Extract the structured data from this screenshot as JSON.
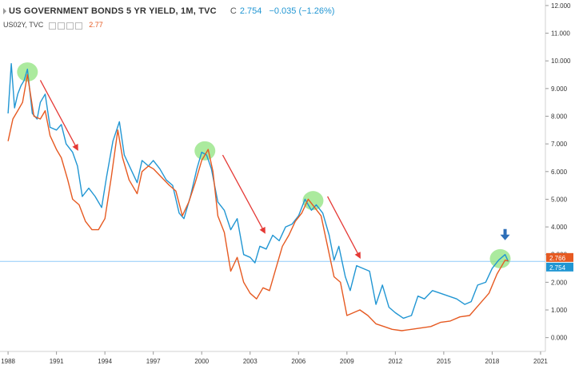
{
  "header": {
    "symbol_title": "US GOVERNMENT BONDS 5 YR YIELD, 1M, TVC",
    "close_prefix": "C",
    "close_value": "2.754",
    "change": "−0.035 (−1.26%)",
    "compare_symbol": "US02Y, TVC",
    "compare_value": "2.77"
  },
  "colors": {
    "us05y": "#2196d3",
    "us02y": "#e65a22",
    "arrow_red": "#e53935",
    "arrow_blue": "#2e6fb8",
    "circle_fill": "#8fe37e",
    "price_line": "#90caf9"
  },
  "chart_data": {
    "type": "line",
    "title": "US GOVERNMENT BONDS 5 YR YIELD, 1M, TVC",
    "xlabel": "",
    "ylabel": "",
    "xlim": [
      1987.5,
      2021.3
    ],
    "ylim": [
      -0.5,
      12.2
    ],
    "x_ticks": [
      "1988",
      "1991",
      "1994",
      "1997",
      "2000",
      "2003",
      "2006",
      "2009",
      "2012",
      "2015",
      "2018",
      "2021"
    ],
    "y_ticks": [
      "12.000",
      "11.000",
      "10.000",
      "9.000",
      "8.000",
      "7.000",
      "6.000",
      "5.000",
      "4.000",
      "3.000",
      "2.000",
      "1.000",
      "0.000"
    ],
    "series": [
      {
        "name": "US05Y",
        "x": [
          1988.0,
          1988.2,
          1988.4,
          1988.6,
          1988.8,
          1989.0,
          1989.2,
          1989.5,
          1989.8,
          1990.0,
          1990.3,
          1990.6,
          1991.0,
          1991.3,
          1991.6,
          1992.0,
          1992.3,
          1992.6,
          1993.0,
          1993.4,
          1993.8,
          1994.1,
          1994.5,
          1994.9,
          1995.2,
          1995.6,
          1996.0,
          1996.3,
          1996.7,
          1997.0,
          1997.4,
          1997.8,
          1998.2,
          1998.6,
          1998.9,
          1999.3,
          1999.7,
          2000.0,
          2000.3,
          2000.6,
          2001.0,
          2001.4,
          2001.8,
          2002.2,
          2002.6,
          2003.0,
          2003.3,
          2003.6,
          2004.0,
          2004.4,
          2004.8,
          2005.2,
          2005.6,
          2006.0,
          2006.4,
          2006.8,
          2007.1,
          2007.5,
          2007.9,
          2008.2,
          2008.5,
          2008.9,
          2009.2,
          2009.6,
          2010.0,
          2010.4,
          2010.8,
          2011.2,
          2011.6,
          2012.0,
          2012.5,
          2013.0,
          2013.4,
          2013.8,
          2014.3,
          2014.8,
          2015.3,
          2015.8,
          2016.3,
          2016.7,
          2017.1,
          2017.6,
          2018.0,
          2018.4,
          2018.8,
          2019.0
        ],
        "values": [
          8.1,
          9.9,
          8.3,
          8.8,
          9.1,
          9.3,
          9.7,
          8.1,
          7.9,
          8.5,
          8.8,
          7.6,
          7.5,
          7.7,
          7.0,
          6.7,
          6.2,
          5.1,
          5.4,
          5.1,
          4.7,
          5.8,
          7.1,
          7.8,
          6.6,
          6.1,
          5.6,
          6.4,
          6.2,
          6.4,
          6.1,
          5.7,
          5.5,
          4.5,
          4.3,
          5.1,
          6.1,
          6.7,
          6.6,
          6.1,
          4.9,
          4.6,
          3.9,
          4.3,
          3.0,
          2.9,
          2.7,
          3.3,
          3.2,
          3.7,
          3.5,
          4.0,
          4.1,
          4.4,
          5.0,
          4.6,
          4.8,
          4.5,
          3.7,
          2.8,
          3.3,
          2.2,
          1.7,
          2.6,
          2.5,
          2.4,
          1.2,
          1.9,
          1.1,
          0.9,
          0.7,
          0.8,
          1.5,
          1.4,
          1.7,
          1.6,
          1.5,
          1.4,
          1.2,
          1.3,
          1.9,
          2.0,
          2.5,
          2.8,
          3.0,
          2.75
        ]
      },
      {
        "name": "US02Y",
        "x": [
          1988.0,
          1988.3,
          1988.6,
          1988.9,
          1989.2,
          1989.6,
          1990.0,
          1990.3,
          1990.6,
          1991.0,
          1991.3,
          1991.7,
          1992.0,
          1992.4,
          1992.8,
          1993.2,
          1993.6,
          1994.0,
          1994.4,
          1994.8,
          1995.1,
          1995.5,
          1996.0,
          1996.3,
          1996.7,
          1997.0,
          1997.5,
          1998.0,
          1998.4,
          1998.8,
          1999.2,
          1999.6,
          2000.0,
          2000.4,
          2000.7,
          2001.0,
          2001.4,
          2001.8,
          2002.2,
          2002.6,
          2003.0,
          2003.4,
          2003.8,
          2004.2,
          2004.6,
          2005.0,
          2005.4,
          2005.8,
          2006.2,
          2006.6,
          2007.0,
          2007.4,
          2007.8,
          2008.2,
          2008.6,
          2009.0,
          2009.4,
          2009.8,
          2010.3,
          2010.8,
          2011.3,
          2011.8,
          2012.4,
          2013.0,
          2013.6,
          2014.2,
          2014.8,
          2015.4,
          2016.0,
          2016.6,
          2017.2,
          2017.8,
          2018.3,
          2018.8,
          2019.0
        ],
        "values": [
          7.1,
          7.9,
          8.2,
          8.5,
          9.5,
          8.0,
          7.9,
          8.2,
          7.3,
          6.8,
          6.5,
          5.7,
          5.0,
          4.8,
          4.2,
          3.9,
          3.9,
          4.3,
          5.8,
          7.5,
          6.5,
          5.7,
          5.2,
          6.0,
          6.2,
          6.1,
          5.8,
          5.5,
          5.3,
          4.4,
          4.9,
          5.6,
          6.4,
          6.8,
          6.0,
          4.4,
          3.8,
          2.4,
          2.9,
          2.0,
          1.6,
          1.4,
          1.8,
          1.7,
          2.5,
          3.3,
          3.7,
          4.2,
          4.5,
          5.0,
          4.7,
          4.4,
          3.3,
          2.2,
          2.0,
          0.8,
          0.9,
          1.0,
          0.8,
          0.5,
          0.4,
          0.3,
          0.25,
          0.3,
          0.35,
          0.4,
          0.55,
          0.6,
          0.75,
          0.8,
          1.2,
          1.6,
          2.3,
          2.8,
          2.77
        ]
      }
    ],
    "annotations": {
      "price_line": 2.754,
      "last_labels": [
        {
          "series": "US02Y",
          "text": "2.766"
        },
        {
          "series": "US05Y",
          "text": "2.754"
        }
      ],
      "highlight_circles": [
        {
          "x": 1989.2,
          "y": 9.6
        },
        {
          "x": 2000.2,
          "y": 6.75
        },
        {
          "x": 2006.9,
          "y": 4.95
        },
        {
          "x": 2018.5,
          "y": 2.85
        }
      ],
      "down_arrows": [
        {
          "x1": 1990.0,
          "y1": 9.3,
          "x2": 1992.3,
          "y2": 6.8
        },
        {
          "x1": 2001.3,
          "y1": 6.6,
          "x2": 2003.9,
          "y2": 3.8
        },
        {
          "x1": 2007.8,
          "y1": 5.1,
          "x2": 2009.8,
          "y2": 2.9
        }
      ],
      "marker_arrow": {
        "x": 2018.8,
        "y": 3.75
      }
    }
  }
}
